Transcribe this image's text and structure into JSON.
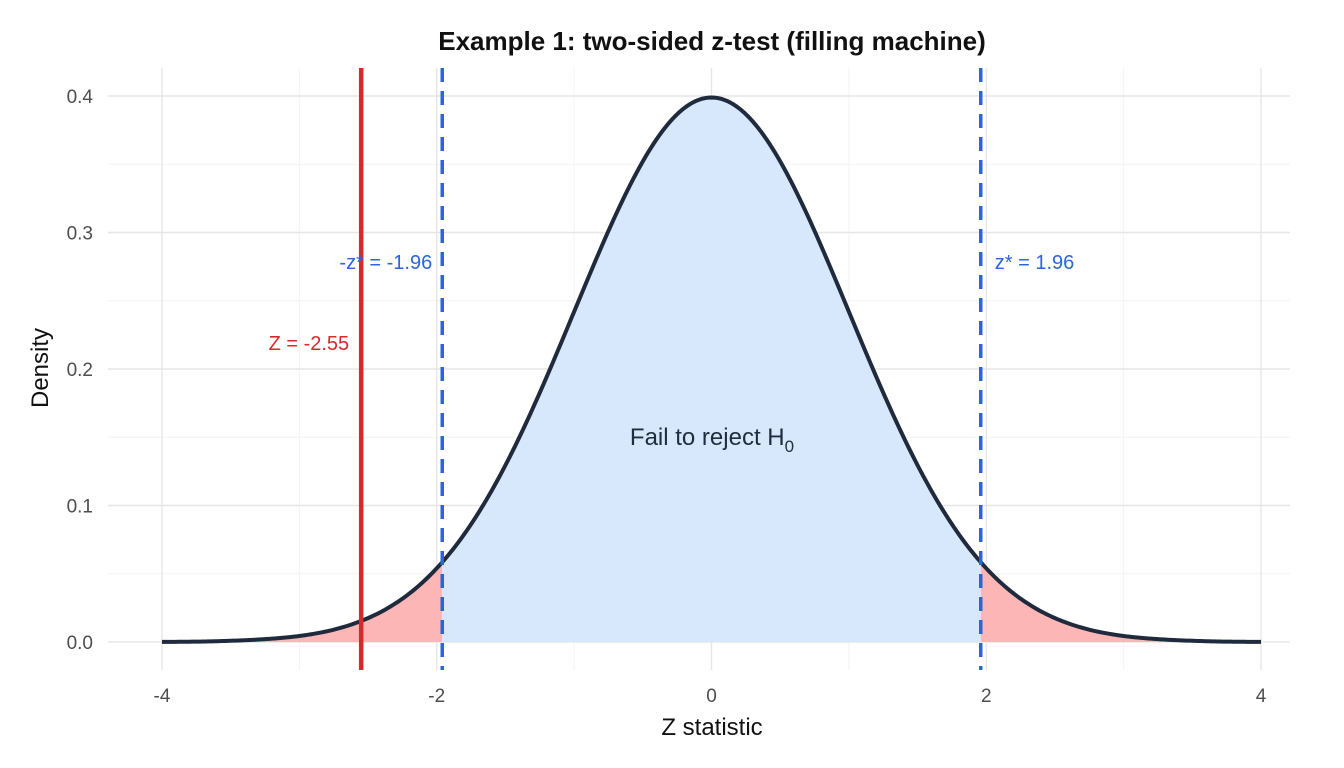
{
  "chart_data": {
    "type": "area",
    "title": "Example 1: two-sided z-test (filling machine)",
    "xlabel": "Z statistic",
    "ylabel": "Density",
    "xlim": [
      -4,
      4
    ],
    "ylim": [
      0,
      0.4
    ],
    "x_ticks": [
      "-4",
      "-2",
      "0",
      "2",
      "4"
    ],
    "y_ticks": [
      "0.0",
      "0.1",
      "0.2",
      "0.3",
      "0.4"
    ],
    "grid": true,
    "curve": {
      "name": "",
      "distribution": "standard normal",
      "x": [
        -4.0,
        -3.5,
        -3.0,
        -2.5,
        -2.0,
        -1.5,
        -1.0,
        -0.5,
        0.0,
        0.5,
        1.0,
        1.5,
        2.0,
        2.5,
        3.0,
        3.5,
        4.0
      ],
      "y": [
        0.0001,
        0.0009,
        0.0044,
        0.0175,
        0.054,
        0.1295,
        0.242,
        0.3521,
        0.3989,
        0.3521,
        0.242,
        0.1295,
        0.054,
        0.0175,
        0.0044,
        0.0009,
        0.0001
      ],
      "color": "#1f2a3d"
    },
    "critical_values": [
      {
        "label": "-z* = -1.96",
        "value": -1.96,
        "color": "#2a66d9"
      },
      {
        "label": "z* = 1.96",
        "value": 1.96,
        "color": "#2a66d9"
      }
    ],
    "observed": {
      "label": "Z = -2.55",
      "value": -2.55,
      "color": "#d42a2a"
    },
    "regions": {
      "acceptance": {
        "label": "Fail to reject H",
        "label_sub": "0",
        "from": -1.96,
        "to": 1.96,
        "color": "#d7e8fd"
      },
      "rejection_color": "#fdb6b6"
    }
  }
}
